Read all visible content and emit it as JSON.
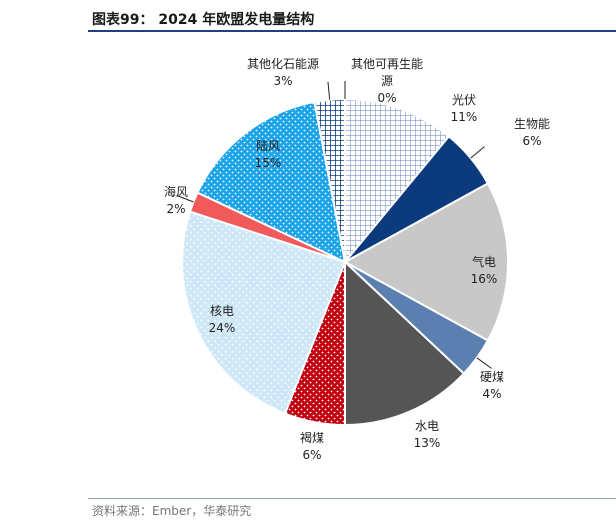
{
  "title": "图表99：  2024 年欧盟发电量结构",
  "source": "资料来源：Ember，华泰研究",
  "chart_data": {
    "type": "pie",
    "title": "2024 年欧盟发电量结构",
    "slices": [
      {
        "name": "光伏",
        "value": 11,
        "label": "11%",
        "color": "#c9d4ec",
        "pattern": "grid-light"
      },
      {
        "name": "生物能",
        "value": 6,
        "label": "6%",
        "color": "#0b3b7c",
        "pattern": "solid"
      },
      {
        "name": "气电",
        "value": 16,
        "label": "16%",
        "color": "#c8c8c8",
        "pattern": "solid"
      },
      {
        "name": "硬煤",
        "value": 4,
        "label": "4%",
        "color": "#5b7fb0",
        "pattern": "solid"
      },
      {
        "name": "水电",
        "value": 13,
        "label": "13%",
        "color": "#555555",
        "pattern": "solid"
      },
      {
        "name": "褐煤",
        "value": 6,
        "label": "6%",
        "color": "#c0000f",
        "pattern": "dots-white"
      },
      {
        "name": "核电",
        "value": 24,
        "label": "24%",
        "color": "#cfe8f7",
        "pattern": "dots-white"
      },
      {
        "name": "海风",
        "value": 2,
        "label": "2%",
        "color": "#f05a5a",
        "pattern": "solid"
      },
      {
        "name": "陆风",
        "value": 15,
        "label": "15%",
        "color": "#1aa3e8",
        "pattern": "dots-white"
      },
      {
        "name": "其他化石能源",
        "value": 3,
        "label": "3%",
        "color": "#0b3b7c",
        "pattern": "grid-dark"
      },
      {
        "name": "其他可再生能源",
        "value": 0,
        "label": "0%",
        "color": "#ffffff",
        "pattern": "none"
      }
    ]
  }
}
